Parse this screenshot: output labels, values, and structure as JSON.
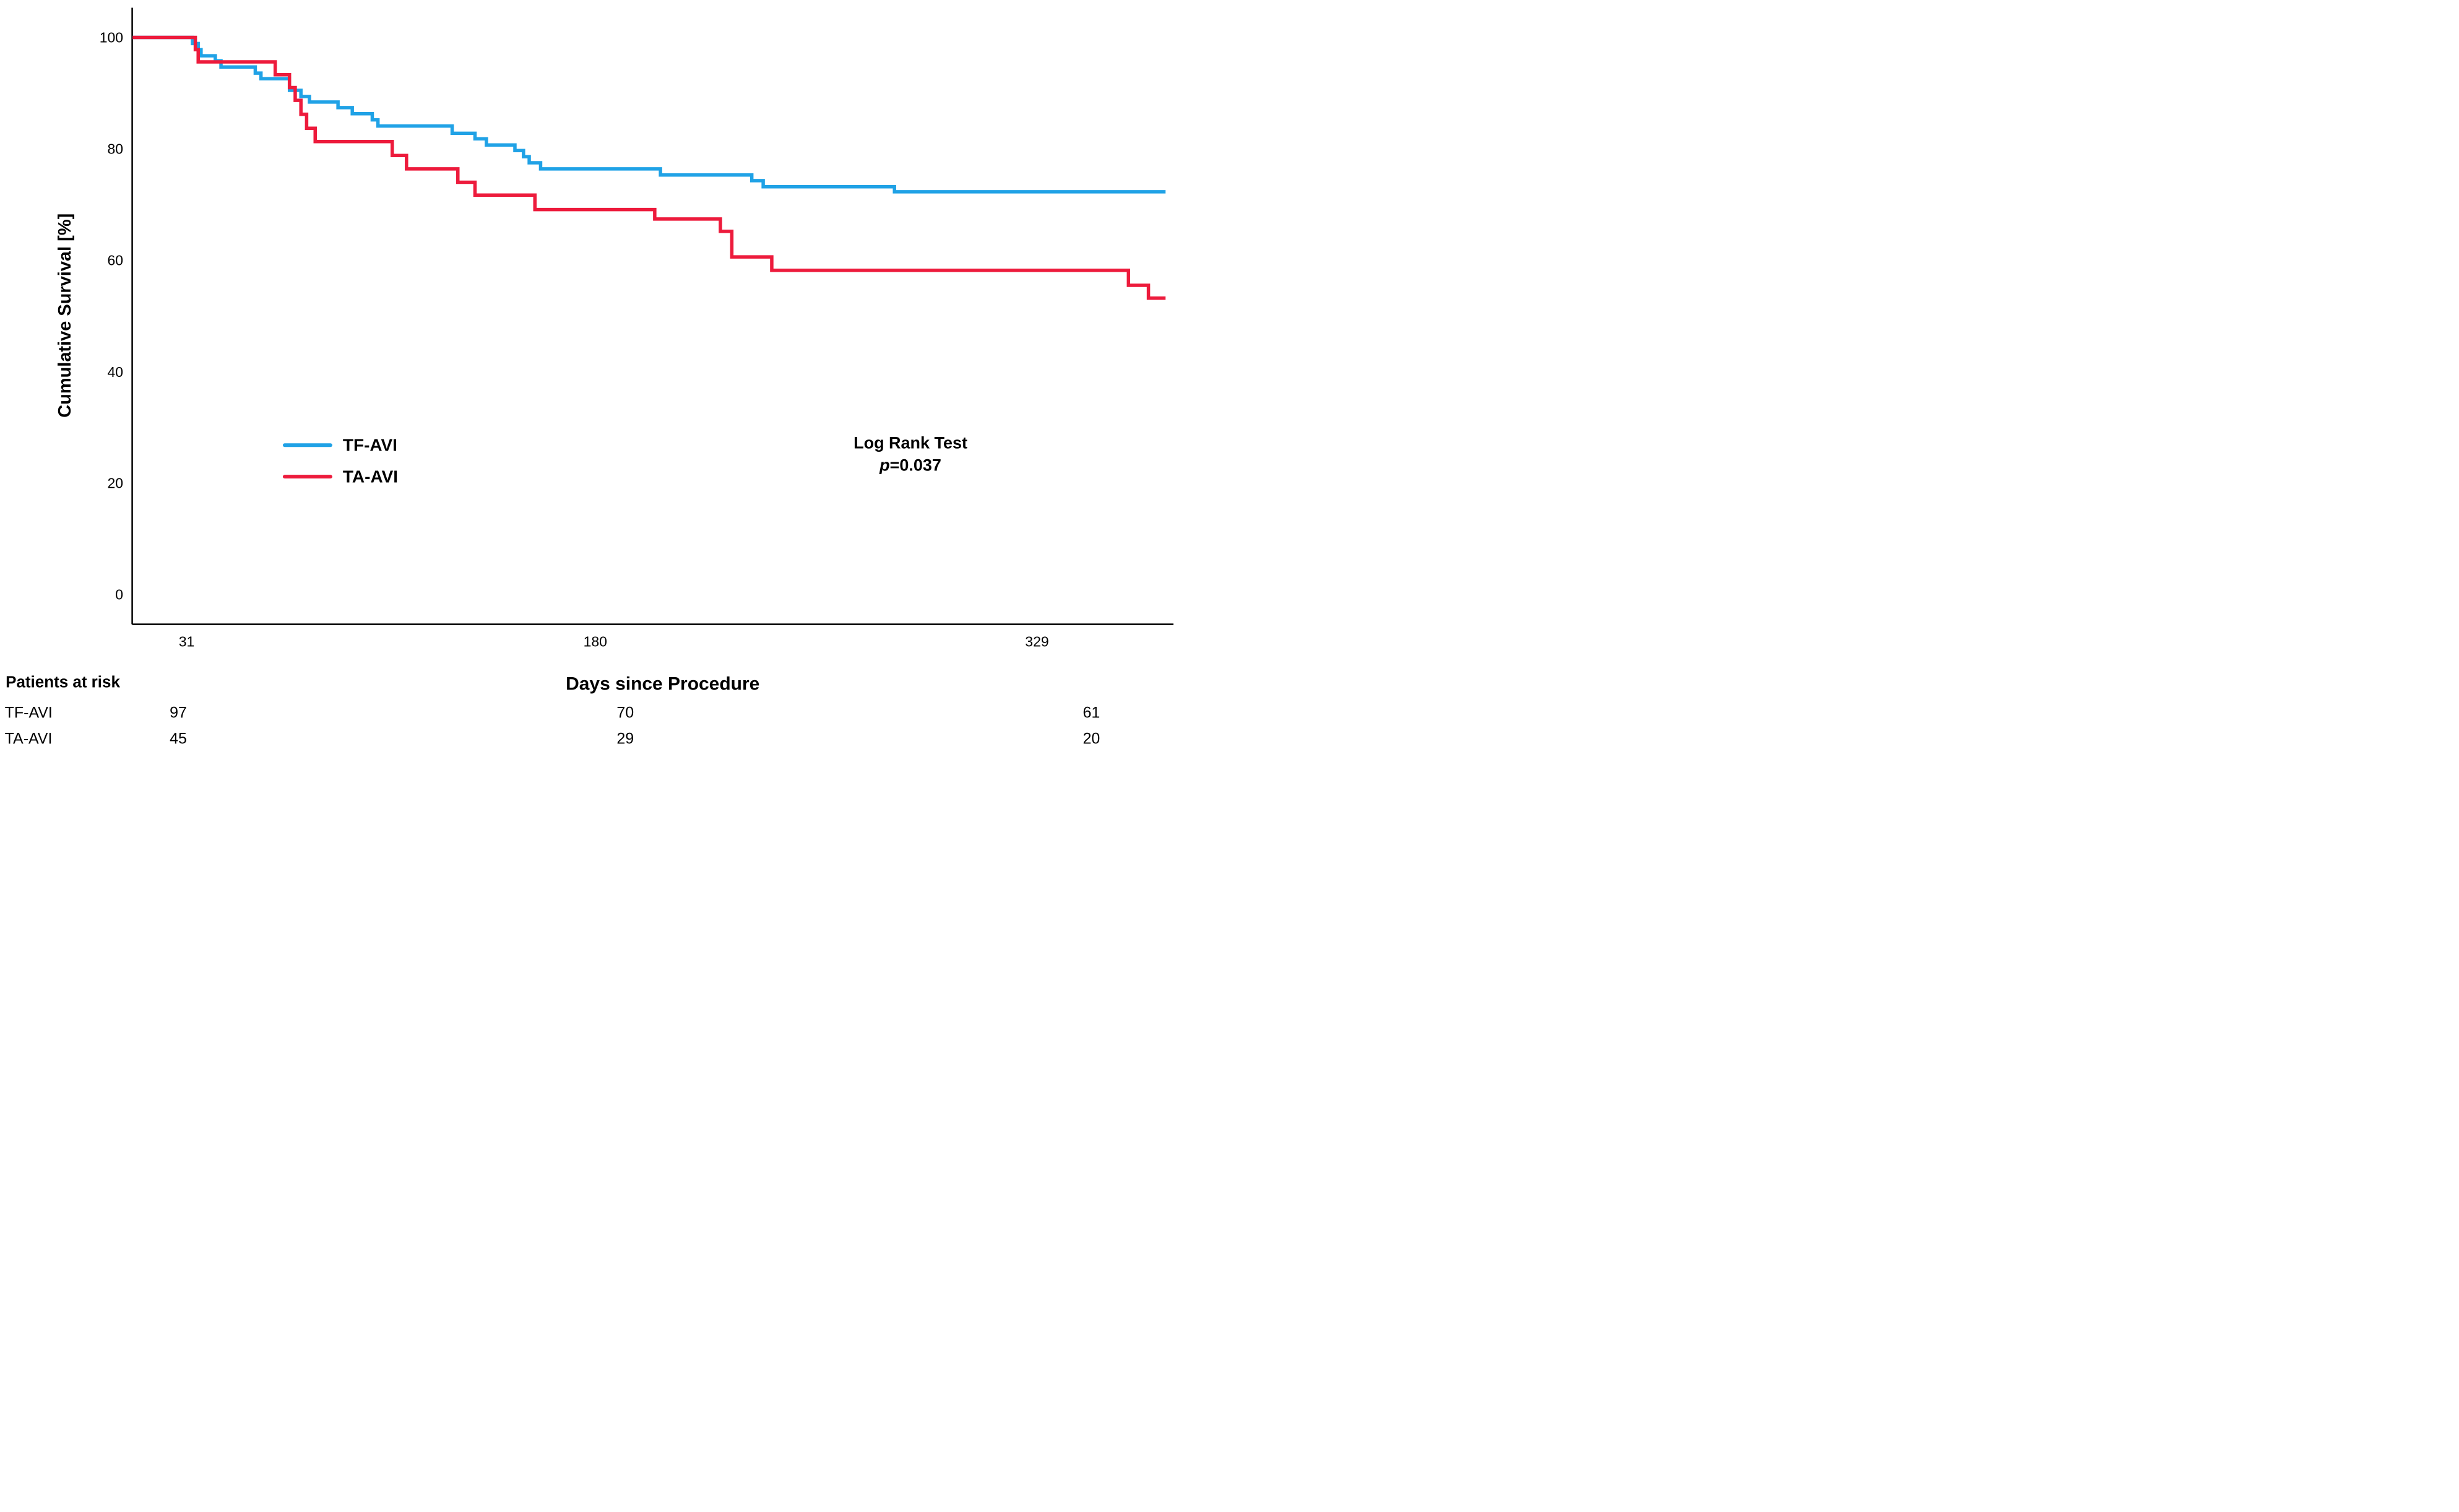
{
  "figure": {
    "y_axis": {
      "title": "Cumulative Survival [%]",
      "ticks": [
        "100",
        "80",
        "60",
        "40",
        "20",
        "0"
      ]
    },
    "x_axis": {
      "title": "Days since Procedure",
      "ticks": [
        "31",
        "180",
        "329"
      ]
    },
    "legend": {
      "items": [
        {
          "label": "TF-AVI",
          "color": "#20A2E6"
        },
        {
          "label": "TA-AVI",
          "color": "#ED1B3C"
        }
      ]
    },
    "stats": {
      "line1": "Log Rank Test",
      "p_symbol": "p",
      "p_rest": "=0.037"
    },
    "risk_table": {
      "title": "Patients at risk",
      "rows": [
        {
          "label": "TF-AVI",
          "counts": [
            "97",
            "70",
            "61"
          ]
        },
        {
          "label": "TA-AVI",
          "counts": [
            "45",
            "29",
            "20"
          ]
        }
      ]
    }
  },
  "chart_data": {
    "type": "line",
    "subtype": "kaplan-meier-step",
    "title": "",
    "xlabel": "Days since Procedure",
    "ylabel": "Cumulative Survival [%]",
    "x_ticks": [
      31,
      180,
      329
    ],
    "y_ticks": [
      100,
      80,
      60,
      40,
      20,
      0
    ],
    "xlim": [
      14,
      378
    ],
    "ylim": [
      0,
      100
    ],
    "grid": false,
    "legend_position": "center-left-inside",
    "annotation": "Log Rank Test p=0.037",
    "series": [
      {
        "name": "TF-AVI",
        "color": "#20A2E6",
        "n_start": 97,
        "start_day": 14,
        "end_day": 376,
        "start_pct": 100,
        "drops": [
          [
            35,
            98.9
          ],
          [
            37,
            97.8
          ],
          [
            38,
            96.7
          ],
          [
            43,
            95.8
          ],
          [
            45,
            94.7
          ],
          [
            57,
            93.6
          ],
          [
            59,
            92.6
          ],
          [
            69,
            90.5
          ],
          [
            73,
            89.4
          ],
          [
            76,
            88.4
          ],
          [
            86,
            87.4
          ],
          [
            91,
            86.3
          ],
          [
            98,
            85.2
          ],
          [
            100,
            84.1
          ],
          [
            126,
            82.8
          ],
          [
            134,
            81.8
          ],
          [
            138,
            80.7
          ],
          [
            148,
            79.7
          ],
          [
            151,
            78.6
          ],
          [
            153,
            77.5
          ],
          [
            157,
            76.4
          ],
          [
            199,
            75.3
          ],
          [
            231,
            74.3
          ],
          [
            235,
            73.2
          ],
          [
            281,
            72.3
          ]
        ]
      },
      {
        "name": "TA-AVI",
        "color": "#ED1B3C",
        "n_start": 45,
        "start_day": 14,
        "end_day": 376,
        "start_pct": 100,
        "drops": [
          [
            36,
            97.8
          ],
          [
            37,
            95.6
          ],
          [
            64,
            93.3
          ],
          [
            69,
            91.0
          ],
          [
            71,
            88.7
          ],
          [
            73,
            86.2
          ],
          [
            75,
            83.7
          ],
          [
            78,
            81.3
          ],
          [
            105,
            78.8
          ],
          [
            110,
            76.4
          ],
          [
            128,
            74.0
          ],
          [
            134,
            71.7
          ],
          [
            155,
            69.1
          ],
          [
            197,
            67.4
          ],
          [
            220,
            65.2
          ],
          [
            224,
            60.6
          ],
          [
            238,
            58.2
          ],
          [
            363,
            55.5
          ],
          [
            370,
            53.2
          ]
        ]
      }
    ],
    "patients_at_risk": {
      "days": [
        31,
        180,
        329
      ],
      "TF-AVI": [
        97,
        70,
        61
      ],
      "TA-AVI": [
        45,
        29,
        20
      ]
    }
  }
}
